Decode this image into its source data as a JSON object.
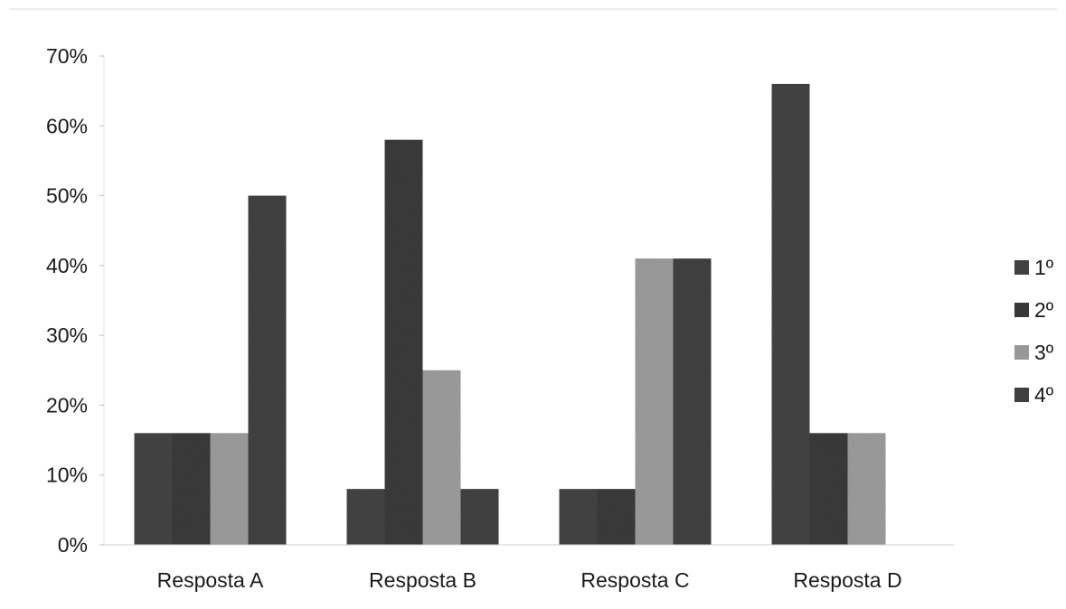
{
  "chart_data": {
    "type": "bar",
    "categories": [
      "Resposta A",
      "Resposta B",
      "Resposta C",
      "Resposta D"
    ],
    "series": [
      {
        "name": "1º",
        "values": [
          16,
          8,
          8,
          66
        ],
        "color": "#4a4a4a"
      },
      {
        "name": "2º",
        "values": [
          16,
          58,
          8,
          16
        ],
        "color": "#3f3f3f"
      },
      {
        "name": "3º",
        "values": [
          16,
          25,
          41,
          16
        ],
        "color": "#a6a6a6"
      },
      {
        "name": "4º",
        "values": [
          50,
          8,
          41,
          0
        ],
        "color": "#474747"
      }
    ],
    "yticks": [
      "0%",
      "10%",
      "20%",
      "30%",
      "40%",
      "50%",
      "60%",
      "70%"
    ],
    "ylim": [
      0,
      70
    ],
    "grid": false,
    "legend_position": "right"
  }
}
